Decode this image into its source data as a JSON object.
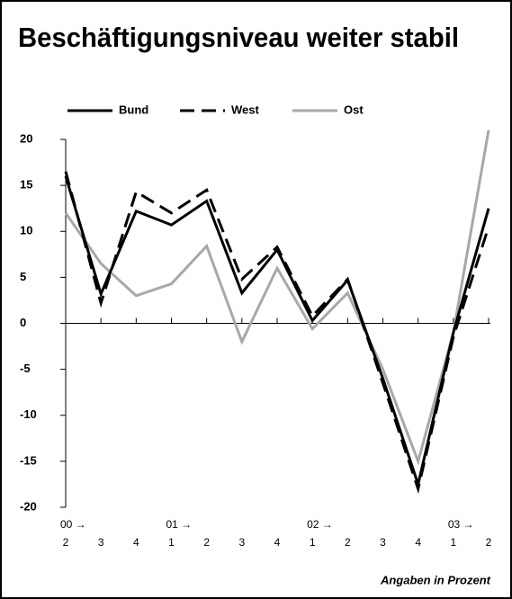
{
  "chart_data": {
    "type": "line",
    "title": "Beschäftigungsniveau weiter stabil",
    "categories": [
      "2",
      "3",
      "4",
      "1",
      "2",
      "3",
      "4",
      "1",
      "2",
      "3",
      "4",
      "1",
      "2"
    ],
    "year_labels": [
      "00 →",
      null,
      null,
      "01 →",
      null,
      null,
      null,
      "02 →",
      null,
      null,
      null,
      "03 →",
      null
    ],
    "series": [
      {
        "name": "Bund",
        "color": "#000000",
        "line_style": "solid",
        "values": [
          16,
          3.2,
          12.2,
          10.7,
          13.3,
          3.3,
          8,
          0.3,
          4.7,
          -6,
          -17.5,
          -1,
          12.5
        ]
      },
      {
        "name": "West",
        "color": "#000000",
        "line_style": "dashed",
        "values": [
          16.5,
          2.2,
          14.3,
          12,
          14.5,
          4.8,
          8.3,
          0.8,
          4.8,
          -6.5,
          -18,
          -1.5,
          10.5
        ]
      },
      {
        "name": "Ost",
        "color": "#a8a8a8",
        "line_style": "solid",
        "values": [
          12,
          6.5,
          3,
          4.3,
          8.4,
          -2,
          6,
          -0.6,
          3.3,
          -5,
          -15,
          -1,
          21
        ]
      }
    ],
    "ylim": [
      -20,
      20
    ],
    "yticks": [
      20,
      15,
      10,
      5,
      0,
      -5,
      -10,
      -15,
      -20
    ],
    "note": "Angaben in Prozent"
  }
}
